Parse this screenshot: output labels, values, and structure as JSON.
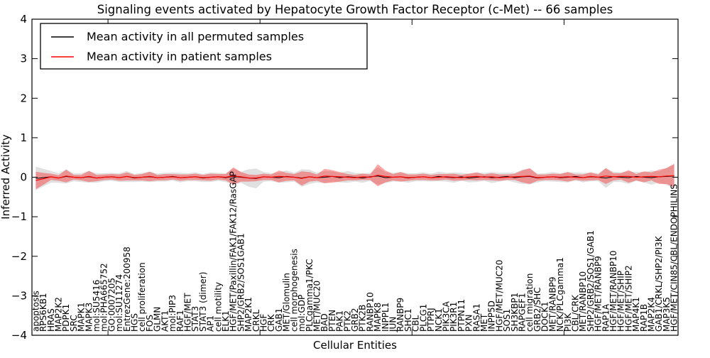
{
  "title": "Signaling events activated by Hepatocyte Growth Factor Receptor (c-Met) -- 66 samples",
  "legend": {
    "entries": [
      {
        "label": "Mean activity in all permuted samples",
        "color": "#000000"
      },
      {
        "label": "Mean activity in patient samples",
        "color": "#ff0000"
      }
    ]
  },
  "axes": {
    "ylabel": "Inferred Activity",
    "xlabel": "Cellular Entities",
    "ylim": [
      -4,
      4
    ],
    "yticks": [
      4,
      3,
      2,
      1,
      0,
      -1,
      -2,
      -3,
      -4
    ],
    "yticklabels": [
      "4",
      "3",
      "2",
      "1",
      "0",
      "−1",
      "−2",
      "−3",
      "−4"
    ],
    "xticks_index": [
      10,
      30,
      50,
      70
    ]
  },
  "chart_data": {
    "type": "line",
    "title": "Signaling events activated by Hepatocyte Growth Factor Receptor (c-Met) -- 66 samples",
    "xlabel": "Cellular Entities",
    "ylabel": "Inferred Activity",
    "ylim": [
      -4,
      4
    ],
    "grid": false,
    "legend_position": "upper left",
    "categories": [
      "apoptosis",
      "RPS6KB1",
      "HRAS",
      "MAP2K2",
      "PDPK1",
      "SRC",
      "MAPK1",
      "MAPK3",
      "mol:SU5416",
      "mol:PHA665752",
      "GO:0007205",
      "mol:SU11274",
      "EntrezGene:200958",
      "HGS",
      "cell proliferation",
      "FOS",
      "GLMN",
      "AKT1",
      "mol:PIP3",
      "RAF1",
      "HGF/MET",
      "STAT3",
      "STAT3 (dimer)",
      "AP1",
      "cell motility",
      "ELK1",
      "HGF/MET/Paxillin/FAK1/FAK12/RasGAP",
      "SHP2/GRB2/SOS1GAB1",
      "MAP2K1",
      "CRKL",
      "HGF",
      "CRK",
      "GAB1",
      "MET/Glomulin",
      "cell morphogenesis",
      "mol:GDP",
      "PLCgamma1/PKC",
      "MET/MUC20",
      "BAD",
      "PTEN",
      "PAK1",
      "PTK2",
      "GRB2",
      "PTK2B",
      "RANBP10",
      "MAPK8",
      "INPPL1",
      "JUN",
      "RANBP9",
      "SHC1",
      "CBL",
      "PLCG1",
      "PTPRJ",
      "NCK1",
      "PIK3CA",
      "PIK3R1",
      "PTPN11",
      "PXN",
      "RASA1",
      "MET",
      "INPP5D",
      "HGF/MET/MUC20",
      "SOS1",
      "SH3KBP1",
      "RAPGEF1",
      "cell migration",
      "GRB2/SHC",
      "DOCK1",
      "MET/RANBP9",
      "NCK/PLCgamma1",
      "PI3K",
      "CBL/CRK",
      "MET/RANBP10",
      "SHP2/GRB2/SOS1/GAB1",
      "HGF/MET/RANBP9",
      "RAP1A",
      "HGF/MET/RANBP10",
      "HGF/MET/SHIP",
      "HGF/MET/SHIP2",
      "MAP4K1",
      "RAP1B",
      "MAP2K4",
      "GAB1/CRKL/SHP2/PI3K",
      "MAP3K5",
      "HGF/MET/CIN85/CBL/ENDOPHILINS"
    ],
    "series": [
      {
        "name": "Mean activity in all permuted samples",
        "color": "#000000",
        "band_color": "#bbbbbb",
        "band_opacity": 0.45,
        "values": [
          -0.03,
          -0.01,
          0.01,
          -0.02,
          0.02,
          0.0,
          -0.01,
          0.01,
          -0.02,
          0.0,
          0.01,
          -0.01,
          0.02,
          -0.02,
          0.0,
          0.01,
          -0.01,
          0.0,
          0.02,
          -0.01,
          0.0,
          0.01,
          -0.02,
          0.0,
          0.01,
          -0.01,
          0.02,
          0.0,
          -0.02,
          -0.03,
          0.01,
          0.0,
          -0.01,
          0.02,
          0.0,
          -0.02,
          0.01,
          -0.01,
          0.0,
          0.02,
          -0.01,
          0.01,
          0.0,
          -0.02,
          0.01,
          0.03,
          -0.01,
          0.0,
          0.01,
          -0.02,
          0.0,
          0.01,
          -0.01,
          0.02,
          0.0,
          -0.01,
          0.01,
          -0.02,
          0.0,
          0.01,
          -0.01,
          0.0,
          0.02,
          -0.01,
          0.01,
          0.02,
          -0.02,
          0.0,
          0.01,
          -0.01,
          0.0,
          0.02,
          -0.01,
          0.01,
          0.0,
          -0.02,
          0.01,
          0.0,
          -0.01,
          0.02,
          0.0,
          -0.01,
          0.01,
          0.02,
          0.03
        ],
        "std": [
          0.3,
          0.22,
          0.15,
          0.12,
          0.18,
          0.1,
          0.11,
          0.15,
          0.12,
          0.1,
          0.1,
          0.11,
          0.14,
          0.1,
          0.11,
          0.13,
          0.1,
          0.11,
          0.1,
          0.12,
          0.1,
          0.11,
          0.1,
          0.12,
          0.1,
          0.11,
          0.2,
          0.14,
          0.22,
          0.25,
          0.12,
          0.1,
          0.13,
          0.15,
          0.11,
          0.22,
          0.18,
          0.12,
          0.16,
          0.13,
          0.12,
          0.15,
          0.11,
          0.12,
          0.1,
          0.22,
          0.14,
          0.11,
          0.12,
          0.12,
          0.1,
          0.11,
          0.1,
          0.12,
          0.11,
          0.13,
          0.1,
          0.11,
          0.12,
          0.1,
          0.14,
          0.11,
          0.1,
          0.12,
          0.18,
          0.2,
          0.11,
          0.1,
          0.12,
          0.11,
          0.13,
          0.1,
          0.12,
          0.11,
          0.1,
          0.25,
          0.13,
          0.12,
          0.16,
          0.11,
          0.13,
          0.18,
          0.14,
          0.22,
          0.3
        ]
      },
      {
        "name": "Mean activity in patient samples",
        "color": "#ff0000",
        "band_color": "#ff0000",
        "band_opacity": 0.35,
        "values": [
          -0.08,
          -0.04,
          0.01,
          -0.02,
          0.03,
          0.0,
          -0.01,
          0.02,
          -0.02,
          0.0,
          0.01,
          -0.01,
          0.02,
          -0.01,
          0.0,
          0.02,
          -0.01,
          0.0,
          0.01,
          -0.01,
          0.0,
          0.01,
          -0.01,
          0.0,
          0.01,
          0.0,
          0.03,
          0.01,
          -0.02,
          -0.02,
          0.01,
          0.0,
          0.02,
          0.01,
          0.0,
          -0.03,
          0.01,
          -0.01,
          0.03,
          0.02,
          0.01,
          0.0,
          -0.01,
          0.01,
          0.0,
          0.05,
          0.02,
          0.0,
          0.01,
          -0.01,
          0.0,
          0.01,
          -0.01,
          0.0,
          0.01,
          0.0,
          -0.01,
          0.01,
          0.02,
          0.0,
          0.01,
          -0.01,
          0.0,
          0.01,
          0.02,
          0.03,
          -0.01,
          0.0,
          0.01,
          0.0,
          0.01,
          0.0,
          -0.01,
          0.02,
          0.0,
          0.03,
          0.01,
          0.02,
          0.02,
          0.0,
          0.01,
          0.02,
          0.01,
          0.03,
          0.04
        ],
        "std": [
          0.22,
          0.15,
          0.08,
          0.07,
          0.16,
          0.06,
          0.07,
          0.14,
          0.08,
          0.07,
          0.07,
          0.08,
          0.1,
          0.07,
          0.08,
          0.12,
          0.07,
          0.08,
          0.07,
          0.08,
          0.07,
          0.08,
          0.07,
          0.09,
          0.07,
          0.08,
          0.22,
          0.12,
          0.09,
          0.08,
          0.08,
          0.07,
          0.15,
          0.1,
          0.08,
          0.18,
          0.12,
          0.08,
          0.18,
          0.16,
          0.12,
          0.08,
          0.07,
          0.08,
          0.07,
          0.28,
          0.15,
          0.08,
          0.12,
          0.08,
          0.07,
          0.08,
          0.07,
          0.08,
          0.07,
          0.09,
          0.07,
          0.08,
          0.1,
          0.07,
          0.09,
          0.08,
          0.07,
          0.08,
          0.15,
          0.2,
          0.08,
          0.07,
          0.08,
          0.08,
          0.12,
          0.07,
          0.08,
          0.1,
          0.07,
          0.2,
          0.09,
          0.08,
          0.16,
          0.08,
          0.14,
          0.1,
          0.18,
          0.2,
          0.3
        ]
      }
    ]
  }
}
